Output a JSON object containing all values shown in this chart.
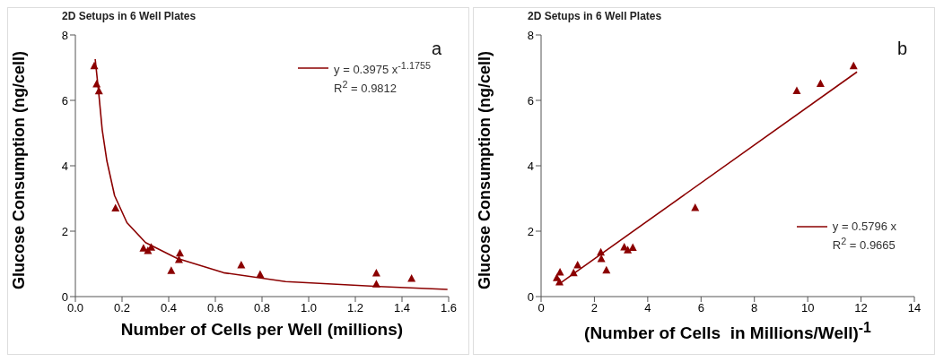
{
  "chart_data": [
    {
      "type": "scatter",
      "title": "2D Setups in 6 Well Plates",
      "xlabel": "Number of Cells per Well (millions)",
      "ylabel": "Glucose Consumption (ng/cell)",
      "xlim": [
        0,
        1.6
      ],
      "xticks": [
        {
          "value": 0,
          "label": "0.0"
        },
        {
          "value": 0.2,
          "label": "0.2"
        },
        {
          "value": 0.4,
          "label": "0.4"
        },
        {
          "value": 0.6,
          "label": "0.6"
        },
        {
          "value": 0.8,
          "label": "0.8"
        },
        {
          "value": 1,
          "label": "1.0"
        },
        {
          "value": 1.2,
          "label": "1.2"
        },
        {
          "value": 1.4,
          "label": "1.4"
        },
        {
          "value": 1.6,
          "label": "1.6"
        }
      ],
      "ylim": [
        0,
        8
      ],
      "yticks": [
        0,
        2,
        4,
        6,
        8
      ],
      "legend": "top right",
      "marker": "triangle",
      "annotations": [
        "a",
        "R$^{2}$ = 0.9812"
      ],
      "series": [
        {
          "color": "#8b0000",
          "x": [
            0.081,
            0.091,
            0.101,
            0.172,
            0.292,
            0.311,
            0.325,
            0.411,
            0.448,
            0.444,
            0.711,
            0.792,
            1.29,
            1.29,
            1.441
          ],
          "values": [
            7.05,
            6.49,
            6.28,
            2.7,
            1.47,
            1.4,
            1.5,
            0.79,
            1.32,
            1.12,
            0.96,
            0.67,
            0.71,
            0.38,
            0.55
          ]
        },
        {
          "type": "line",
          "name": "y = 0.3975 x$^{-1.1755}$",
          "color": "#8b0000",
          "marker": "none",
          "line_style": "solid",
          "x": [
            0.085,
            0.101,
            0.115,
            0.135,
            0.168,
            0.221,
            0.301,
            0.435,
            0.635,
            0.901,
            1.301,
            1.595
          ],
          "values": [
            7.26,
            6.16,
            5.1,
            4.15,
            3.09,
            2.26,
            1.65,
            1.17,
            0.73,
            0.46,
            0.31,
            0.22
          ]
        }
      ]
    },
    {
      "type": "scatter",
      "title": "2D Setups in 6 Well Plates",
      "xlabel": "(Number of Cells  in Millions/Well)$^{-1}$",
      "ylabel": "Glucose Consumption (ng/cell)",
      "xlim": [
        0,
        14
      ],
      "xticks": [
        0,
        2,
        4,
        6,
        8,
        10,
        12,
        14
      ],
      "ylim": [
        0,
        8
      ],
      "yticks": [
        0,
        2,
        4,
        6,
        8
      ],
      "legend": "bottom right",
      "marker": "triangle",
      "annotations": [
        "b",
        "R$^{2}$ = 0.9665"
      ],
      "series": [
        {
          "color": "#8b0000",
          "x": [
            11.72,
            10.48,
            9.59,
            5.78,
            3.44,
            3.12,
            3.25,
            2.24,
            2.26,
            2.45,
            1.37,
            1.22,
            0.71,
            0.69,
            0.59
          ],
          "values": [
            7.05,
            6.51,
            6.29,
            2.71,
            1.49,
            1.51,
            1.42,
            1.35,
            1.15,
            0.8,
            0.96,
            0.72,
            0.74,
            0.44,
            0.57
          ]
        },
        {
          "type": "line",
          "name": "y = 0.5796 x",
          "color": "#8b0000",
          "marker": "none",
          "line_style": "solid",
          "x": [
            0.75,
            11.85
          ],
          "values": [
            0.43,
            6.87
          ]
        }
      ]
    }
  ]
}
